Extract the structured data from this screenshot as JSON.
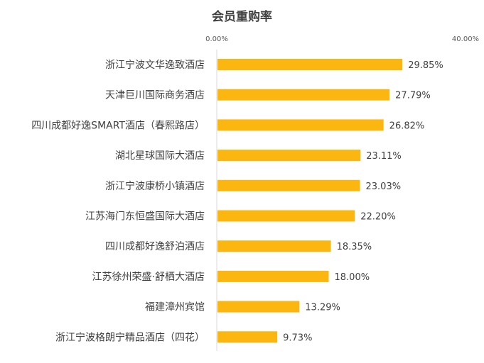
{
  "chart_data": {
    "type": "bar",
    "orientation": "horizontal",
    "title": "会员重购率",
    "xlabel": "",
    "ylabel": "",
    "xlim": [
      0,
      40
    ],
    "axis_tick_labels": [
      "0.00%",
      "40.00%"
    ],
    "axis_position": "top",
    "grid": false,
    "bar_color": "#FBB710",
    "categories": [
      "浙江宁波文华逸致酒店",
      "天津巨川国际商务酒店",
      "四川成都好逸SMART酒店（春熙路店）",
      "湖北星球国际大酒店",
      "浙江宁波康桥小镇酒店",
      "江苏海门东恒盛国际大酒店",
      "四川成都好逸舒泊酒店",
      "江苏徐州荣盛·舒栖大酒店",
      "福建漳州宾馆",
      "浙江宁波格朗宁精品酒店（四花）"
    ],
    "values": [
      29.85,
      27.79,
      26.82,
      23.11,
      23.03,
      22.2,
      18.35,
      18.0,
      13.29,
      9.73
    ],
    "data_labels": [
      "29.85%",
      "27.79%",
      "26.82%",
      "23.11%",
      "23.03%",
      "22.20%",
      "18.35%",
      "18.00%",
      "13.29%",
      "9.73%"
    ]
  }
}
